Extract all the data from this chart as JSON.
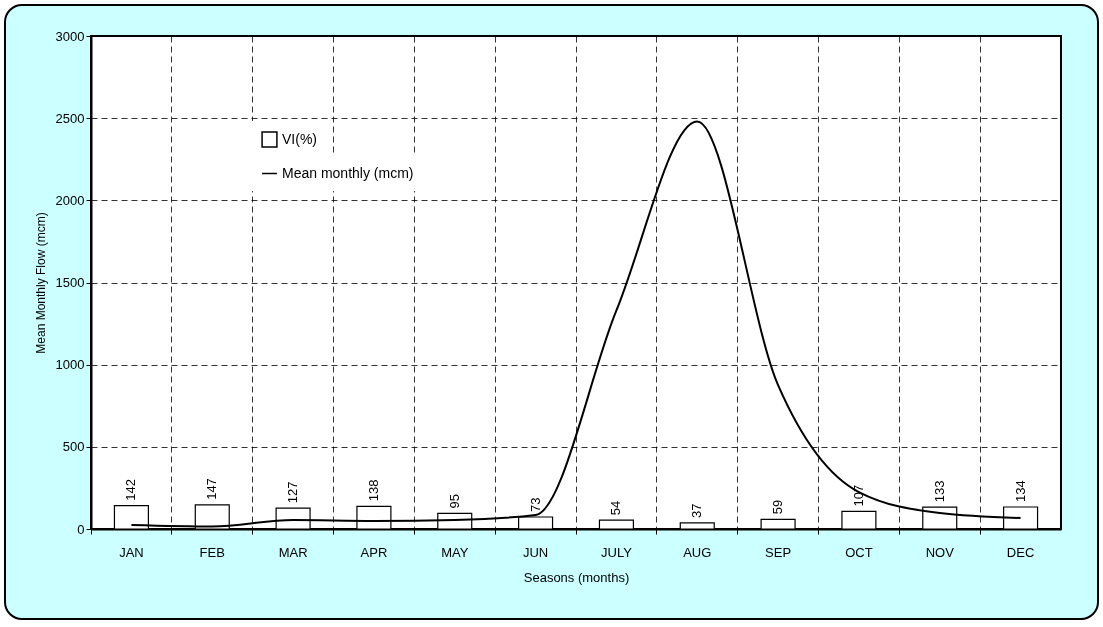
{
  "chart_data": {
    "type": "bar",
    "xlabel": "Seasons (months)",
    "ylabel": "Mean Monthly Flow (mcm)",
    "categories": [
      "JAN",
      "FEB",
      "MAR",
      "APR",
      "MAY",
      "JUN",
      "JULY",
      "AUG",
      "SEP",
      "OCT",
      "NOV",
      "DEC"
    ],
    "series": [
      {
        "name": "VI(%)",
        "color": "#ffffff",
        "values": [
          142,
          147,
          127,
          138,
          95,
          73,
          54,
          37,
          59,
          107,
          133,
          134
        ],
        "value_labels": [
          "142",
          "147",
          "127",
          "138",
          "95",
          "73",
          "54",
          "37",
          "59",
          "107",
          "133",
          "134"
        ]
      },
      {
        "name": "Mean monthly (mcm)",
        "type": "line",
        "color": "#000000",
        "values": [
          24,
          15,
          55,
          49,
          55,
          85,
          1330,
          2480,
          876,
          225,
          97,
          67
        ]
      }
    ],
    "ylim": [
      0,
      3000
    ],
    "yticks": [
      0,
      500,
      1000,
      1500,
      2000,
      2500,
      3000
    ],
    "grid": true,
    "legend": "top left",
    "line_style": "solid",
    "marker": "none"
  }
}
